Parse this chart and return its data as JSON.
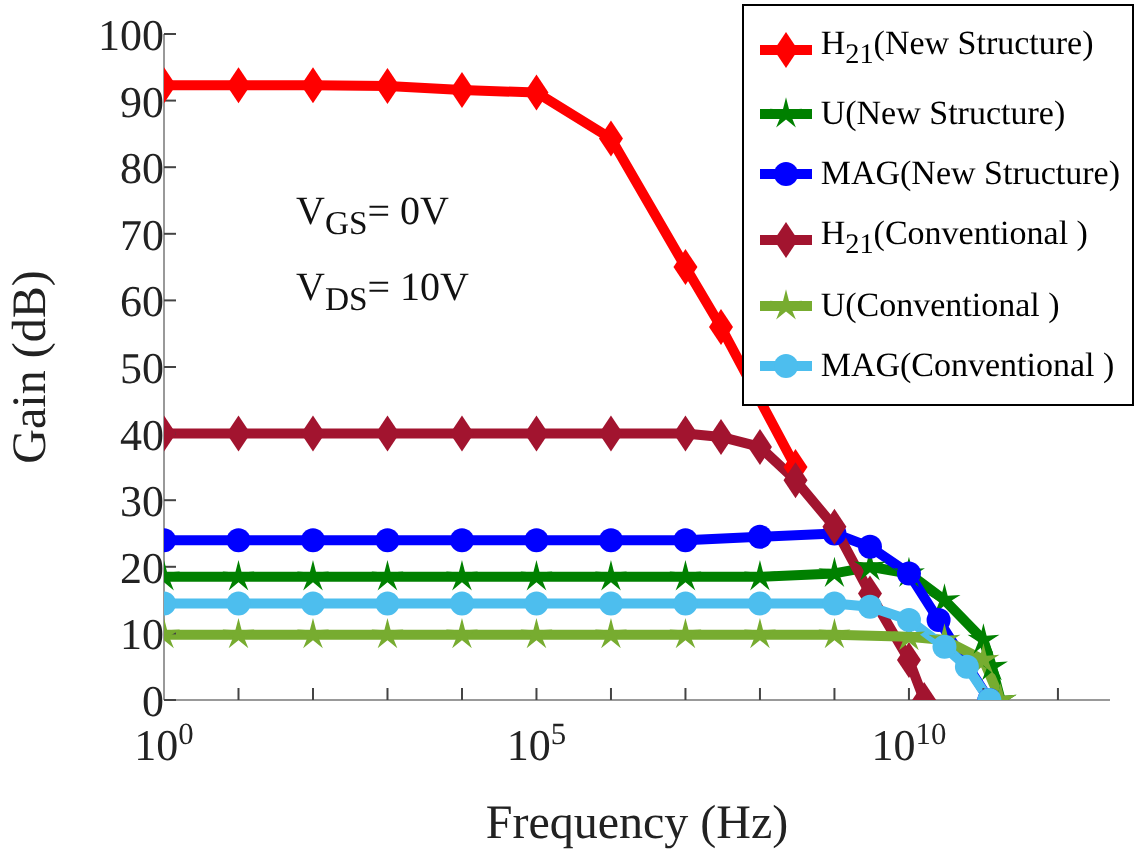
{
  "chart_data": {
    "type": "line",
    "xlabel": "Frequency (Hz)",
    "ylabel": "Gain (dB)",
    "log": "x",
    "grid": false,
    "legend": "top right",
    "line_style": "solid",
    "xlim": [
      1,
      5000000000000
    ],
    "xticks": [
      {
        "value": 1,
        "label": "10$^{0}$"
      },
      {
        "value": 10,
        "label": null
      },
      {
        "value": 100,
        "label": null
      },
      {
        "value": 1000,
        "label": null
      },
      {
        "value": 10000,
        "label": null
      },
      {
        "value": 100000,
        "label": "10$^{5}$"
      },
      {
        "value": 1000000,
        "label": null
      },
      {
        "value": 10000000,
        "label": null
      },
      {
        "value": 100000000,
        "label": null
      },
      {
        "value": 1000000000,
        "label": null
      },
      {
        "value": 10000000000,
        "label": "10$^{10}$"
      },
      {
        "value": 100000000000,
        "label": null
      },
      {
        "value": 1000000000000,
        "label": null
      }
    ],
    "ylim": [
      0,
      100
    ],
    "yticks": [
      0,
      10,
      20,
      30,
      40,
      50,
      60,
      70,
      80,
      90,
      100
    ],
    "annotations": [
      "V$_{GS}$= 0V",
      "V$_{DS}$= 10V"
    ],
    "series": [
      {
        "name": "H$_{21}$(New Structure)",
        "color": "#ff0000",
        "marker": "diamond",
        "x": [
          1,
          10,
          100,
          1000,
          10000,
          100000,
          1000000,
          10000000,
          30000000,
          300000000
        ],
        "values": [
          92.3,
          92.3,
          92.3,
          92.2,
          91.6,
          91.2,
          84.3,
          65,
          56,
          35
        ]
      },
      {
        "name": "U(New Structure)",
        "color": "#008000",
        "marker": "star",
        "x": [
          1,
          10,
          100,
          1000,
          10000,
          100000,
          1000000,
          10000000,
          100000000,
          1000000000,
          3000000000,
          10000000000,
          30000000000,
          100000000000,
          130000000000,
          170000000000
        ],
        "values": [
          18.5,
          18.5,
          18.5,
          18.5,
          18.5,
          18.5,
          18.5,
          18.5,
          18.5,
          19,
          20,
          19,
          15,
          9,
          5,
          0
        ]
      },
      {
        "name": "MAG(New Structure)",
        "color": "#0000ff",
        "marker": "circle",
        "x": [
          1,
          10,
          100,
          1000,
          10000,
          100000,
          1000000,
          10000000,
          100000000,
          1000000000,
          3000000000,
          10000000000,
          25000000000,
          120000000000
        ],
        "values": [
          24,
          24,
          24,
          24,
          24,
          24,
          24,
          24,
          24.5,
          25,
          23,
          19,
          12,
          0
        ]
      },
      {
        "name": "H$_{21}$(Conventional )",
        "color": "#a2142f",
        "marker": "diamond",
        "x": [
          1,
          10,
          100,
          1000,
          10000,
          100000,
          1000000,
          10000000,
          30000000,
          100000000,
          300000000,
          1000000000,
          3000000000,
          10000000000,
          16000000000
        ],
        "values": [
          40,
          40,
          40,
          40,
          40,
          40,
          40,
          40,
          39.5,
          38,
          33,
          26,
          16,
          6,
          0
        ]
      },
      {
        "name": "U(Conventional )",
        "color": "#77ac30",
        "marker": "star",
        "x": [
          1,
          10,
          100,
          1000,
          10000,
          100000,
          1000000,
          10000000,
          100000000,
          1000000000,
          10000000000,
          30000000000,
          100000000000,
          170000000000
        ],
        "values": [
          9.8,
          9.8,
          9.8,
          9.8,
          9.8,
          9.8,
          9.8,
          9.8,
          9.8,
          9.8,
          9.5,
          9,
          6,
          0
        ]
      },
      {
        "name": "MAG(Conventional )",
        "color": "#4dbeee",
        "marker": "circle",
        "x": [
          1,
          10,
          100,
          1000,
          10000,
          100000,
          1000000,
          10000000,
          100000000,
          1000000000,
          3000000000,
          10000000000,
          30000000000,
          60000000000,
          120000000000
        ],
        "values": [
          14.5,
          14.5,
          14.5,
          14.5,
          14.5,
          14.5,
          14.5,
          14.5,
          14.5,
          14.5,
          14,
          12,
          8,
          5,
          0
        ]
      }
    ]
  }
}
